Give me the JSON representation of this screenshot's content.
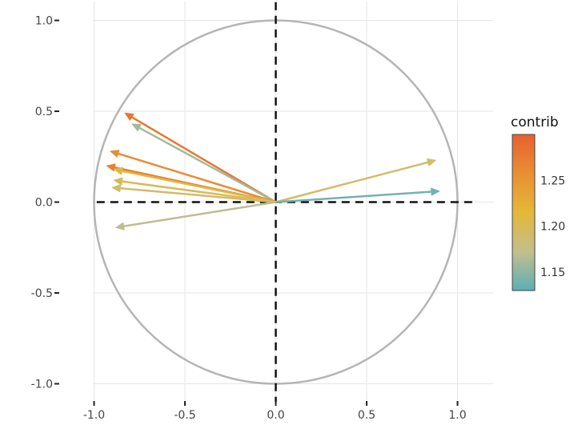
{
  "chart_data": {
    "type": "scatter",
    "subtype": "correlation-circle",
    "title": "",
    "xlabel": "",
    "ylabel": "",
    "xlim": [
      -1.1,
      1.1
    ],
    "ylim": [
      -1.1,
      1.1
    ],
    "xticks": [
      -1.0,
      -0.5,
      0.0,
      0.5,
      1.0
    ],
    "yticks": [
      -1.0,
      -0.5,
      0.0,
      0.5,
      1.0
    ],
    "xtick_labels": [
      "-1.0",
      "-0.5",
      "0.0",
      "0.5",
      "1.0"
    ],
    "ytick_labels": [
      "-1.0",
      "-0.5",
      "0.0",
      "0.5",
      "1.0"
    ],
    "grid": true,
    "unit_circle": true,
    "reference_lines": [
      "x=0 dashed",
      "y=0 dashed"
    ],
    "arrows": [
      {
        "x": -0.83,
        "y": 0.49,
        "contrib": 1.28
      },
      {
        "x": -0.79,
        "y": 0.43,
        "contrib": 1.16
      },
      {
        "x": -0.91,
        "y": 0.28,
        "contrib": 1.26
      },
      {
        "x": -0.93,
        "y": 0.2,
        "contrib": 1.27
      },
      {
        "x": -0.89,
        "y": 0.18,
        "contrib": 1.21
      },
      {
        "x": -0.89,
        "y": 0.12,
        "contrib": 1.2
      },
      {
        "x": -0.9,
        "y": 0.08,
        "contrib": 1.19
      },
      {
        "x": -0.88,
        "y": -0.14,
        "contrib": 1.17
      },
      {
        "x": 0.88,
        "y": 0.23,
        "contrib": 1.19
      },
      {
        "x": 0.9,
        "y": 0.06,
        "contrib": 1.14
      }
    ],
    "colorbar": {
      "title": "contrib",
      "range": [
        1.13,
        1.3
      ],
      "ticks": [
        1.15,
        1.2,
        1.25
      ],
      "tick_labels": [
        "1.15",
        "1.20",
        "1.25"
      ],
      "colors": [
        "#5BAEB7",
        "#C4BE8C",
        "#E3B838",
        "#EA8E34",
        "#E7602F"
      ]
    },
    "legend_position": "right"
  }
}
